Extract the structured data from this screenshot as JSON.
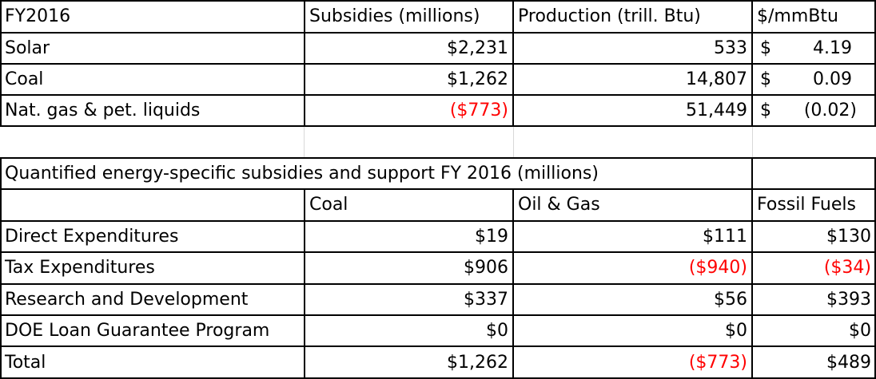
{
  "table1": {
    "headers": [
      "FY2016",
      "Subsidies (millions)",
      "Production (trill. Btu)",
      "$/mmBtu"
    ],
    "rows": [
      {
        "label": "Solar",
        "subsidy": "$2,231",
        "production": "533",
        "currency": "$",
        "price": "4.19"
      },
      {
        "label": "Coal",
        "subsidy": "$1,262",
        "production": "14,807",
        "currency": "$",
        "price": "0.09"
      },
      {
        "label": "Nat. gas & pet. liquids",
        "subsidy": "($773)",
        "production": "51,449",
        "currency": "$",
        "price": "(0.02)"
      }
    ]
  },
  "table2": {
    "title": "Quantified energy-specific subsidies and support  FY 2016 (millions)",
    "headers": [
      "Coal",
      "Oil & Gas",
      "Fossil Fuels"
    ],
    "rows": [
      {
        "label": "Direct Expenditures",
        "coal": "$19",
        "oil_gas": "$111",
        "fossil": "$130"
      },
      {
        "label": "Tax Expenditures",
        "coal": "$906",
        "oil_gas": "($940)",
        "fossil": "($34)"
      },
      {
        "label": "Research and Development",
        "coal": "$337",
        "oil_gas": "$56",
        "fossil": "$393"
      },
      {
        "label": "DOE Loan Guarantee Program",
        "coal": "$0",
        "oil_gas": "$0",
        "fossil": "$0"
      },
      {
        "label": "Total",
        "coal": "$1,262",
        "oil_gas": "($773)",
        "fossil": "$489"
      }
    ]
  },
  "colors": {
    "negative": "#ff0000",
    "gridline": "#d9d9d9",
    "border": "#000000"
  }
}
